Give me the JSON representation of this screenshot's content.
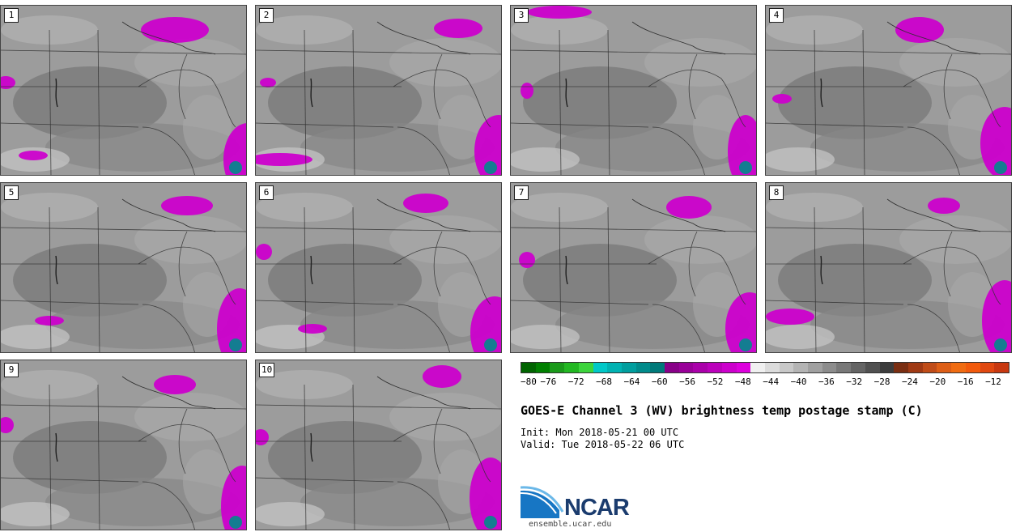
{
  "title": "GOES-E Channel 3 (WV) brightness temp postage stamp (C)",
  "init": "Init: Mon 2018-05-21 00 UTC",
  "valid": "Valid: Tue 2018-05-22 06 UTC",
  "logo": {
    "name": "NCAR",
    "url": "ensemble.ucar.edu"
  },
  "panels": [
    {
      "label": "1"
    },
    {
      "label": "2"
    },
    {
      "label": "3"
    },
    {
      "label": "4"
    },
    {
      "label": "5"
    },
    {
      "label": "6"
    },
    {
      "label": "7"
    },
    {
      "label": "8"
    },
    {
      "label": "9"
    },
    {
      "label": "10"
    }
  ],
  "colorbar": {
    "colors": [
      "#006400",
      "#008000",
      "#1a9a1a",
      "#22b822",
      "#3cd43c",
      "#00c8c8",
      "#00b2b2",
      "#009e9e",
      "#008b8b",
      "#007a7a",
      "#880088",
      "#990099",
      "#aa00aa",
      "#bb00bb",
      "#cc00cc",
      "#dd00dd",
      "#f0f0f0",
      "#dcdcdc",
      "#c8c8c8",
      "#b4b4b4",
      "#a0a0a0",
      "#8c8c8c",
      "#787878",
      "#646464",
      "#505050",
      "#3c3c3c",
      "#7a2e12",
      "#a03a14",
      "#c04c18",
      "#dd5e16",
      "#f06c12",
      "#f25a0c",
      "#e04810",
      "#c83810"
    ],
    "tick_labels": [
      "−80",
      "−76",
      "−72",
      "−68",
      "−64",
      "−60",
      "−56",
      "−52",
      "−48",
      "−44",
      "−40",
      "−36",
      "−32",
      "−28",
      "−24",
      "−20",
      "−16",
      "−12"
    ]
  }
}
